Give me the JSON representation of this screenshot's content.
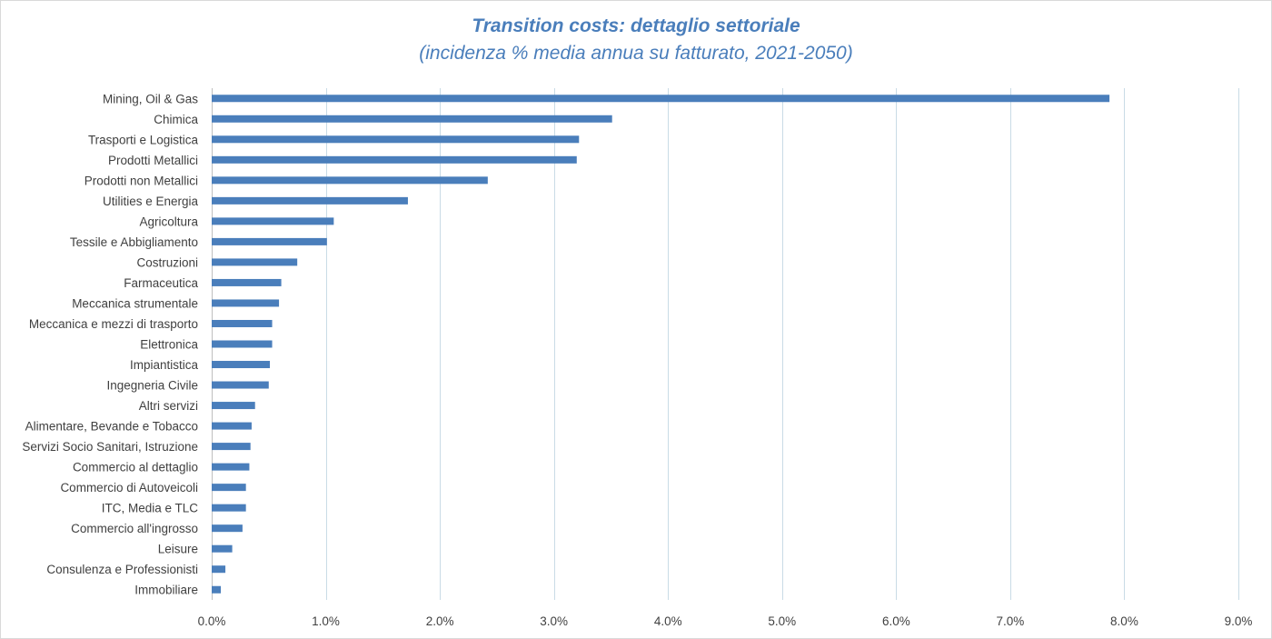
{
  "header": {
    "title": "Transition costs: dettaglio settoriale",
    "subtitle": "(incidenza % media annua su fatturato, 2021-2050)"
  },
  "chart_data": {
    "type": "bar",
    "orientation": "horizontal",
    "title": "Transition costs: dettaglio settoriale",
    "subtitle": "(incidenza % media annua su fatturato, 2021-2050)",
    "xlabel": "",
    "ylabel": "",
    "xlim": [
      0,
      9
    ],
    "x_ticks": [
      "0.0%",
      "1.0%",
      "2.0%",
      "3.0%",
      "4.0%",
      "5.0%",
      "6.0%",
      "7.0%",
      "8.0%",
      "9.0%"
    ],
    "grid": "vertical",
    "legend": "none",
    "bar_color": "#4a7ebb",
    "categories": [
      "Mining, Oil & Gas",
      "Chimica",
      "Trasporti e Logistica",
      "Prodotti Metallici",
      "Prodotti non Metallici",
      "Utilities e Energia",
      "Agricoltura",
      "Tessile e Abbigliamento",
      "Costruzioni",
      "Farmaceutica",
      "Meccanica strumentale",
      "Meccanica e mezzi di trasporto",
      "Elettronica",
      "Impiantistica",
      "Ingegneria Civile",
      "Altri servizi",
      "Alimentare, Bevande e Tobacco",
      "Servizi Socio Sanitari, Istruzione",
      "Commercio al dettaglio",
      "Commercio di Autoveicoli",
      "ITC, Media e TLC",
      "Commercio all'ingrosso",
      "Leisure",
      "Consulenza e Professionisti",
      "Immobiliare"
    ],
    "values": [
      7.87,
      3.51,
      3.22,
      3.2,
      2.42,
      1.72,
      1.07,
      1.01,
      0.75,
      0.61,
      0.59,
      0.53,
      0.53,
      0.51,
      0.5,
      0.38,
      0.35,
      0.34,
      0.33,
      0.3,
      0.3,
      0.27,
      0.18,
      0.12,
      0.08
    ]
  }
}
